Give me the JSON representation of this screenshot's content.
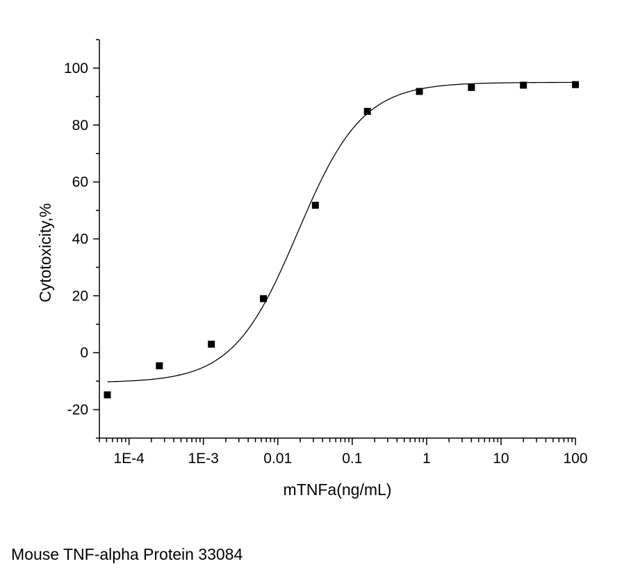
{
  "chart_data": {
    "type": "scatter",
    "x_scale": "log",
    "xlabel": "mTNFa(ng/mL)",
    "ylabel": "Cytotoxicity,%",
    "xlim": [
      4e-05,
      100
    ],
    "ylim": [
      -30,
      110
    ],
    "x_ticks": [
      {
        "value": 0.0001,
        "label": "1E-4"
      },
      {
        "value": 0.001,
        "label": "1E-3"
      },
      {
        "value": 0.01,
        "label": "0.01"
      },
      {
        "value": 0.1,
        "label": "0.1"
      },
      {
        "value": 1,
        "label": "1"
      },
      {
        "value": 10,
        "label": "10"
      },
      {
        "value": 100,
        "label": "100"
      }
    ],
    "y_ticks": [
      {
        "value": -20,
        "label": "-20"
      },
      {
        "value": 0,
        "label": "0"
      },
      {
        "value": 20,
        "label": "20"
      },
      {
        "value": 40,
        "label": "40"
      },
      {
        "value": 60,
        "label": "60"
      },
      {
        "value": 80,
        "label": "80"
      },
      {
        "value": 100,
        "label": "100"
      }
    ],
    "points": [
      {
        "x": 5.12e-05,
        "y": -14.8
      },
      {
        "x": 0.000256,
        "y": -4.6
      },
      {
        "x": 0.00128,
        "y": 3.0
      },
      {
        "x": 0.0064,
        "y": 19.0
      },
      {
        "x": 0.032,
        "y": 51.8
      },
      {
        "x": 0.16,
        "y": 84.8
      },
      {
        "x": 0.8,
        "y": 91.8
      },
      {
        "x": 4,
        "y": 93.2
      },
      {
        "x": 20,
        "y": 94.0
      },
      {
        "x": 100,
        "y": 94.2
      }
    ],
    "fit": {
      "model": "4PL",
      "bottom": -10.5,
      "top": 95,
      "ec50": 0.0185,
      "hill": 1.0
    },
    "grid": false,
    "legend": "none"
  },
  "caption": "Mouse TNF-alpha Protein 33084"
}
